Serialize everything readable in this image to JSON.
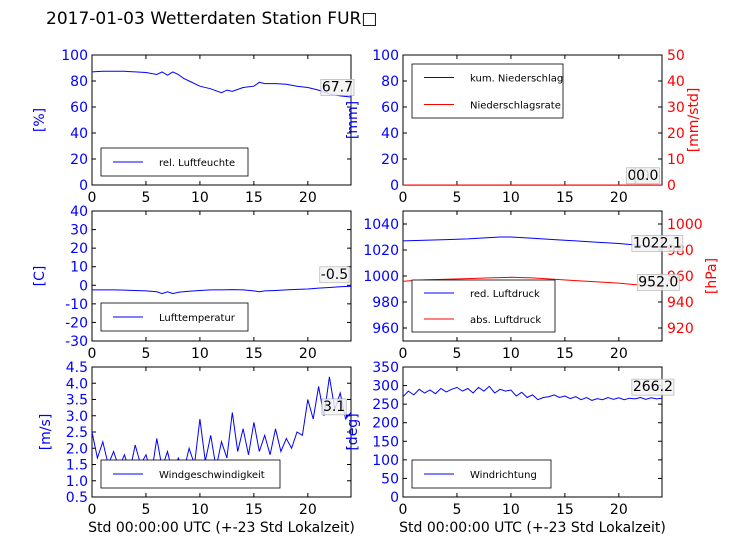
{
  "page": {
    "title": "2017-01-03 Wetterdaten Station FUR□"
  },
  "colors": {
    "blue": "#0000ff",
    "red": "#ff0000",
    "axis": "#000000"
  },
  "chart_data": [
    {
      "id": "humidity",
      "type": "line",
      "xlabel": "",
      "ylabel": "[%]",
      "ylabel_color": "#0000ff",
      "xlim": [
        0,
        24
      ],
      "ylim": [
        0,
        100
      ],
      "xticks": [
        0,
        5,
        10,
        15,
        20
      ],
      "yticks": [
        0,
        20,
        40,
        60,
        80,
        100
      ],
      "ytick_color": "#0000ff",
      "legend": {
        "position": "lower-left",
        "entries": [
          {
            "label": "rel. Luftfeuchte",
            "color": "#0000ff"
          }
        ]
      },
      "annotations": [
        {
          "text": "67.7",
          "x": 21.3,
          "y": 72
        }
      ],
      "series": [
        {
          "name": "rel. Luftfeuchte",
          "color": "#0000ff",
          "x": [
            0,
            1,
            2,
            3,
            4,
            5,
            6,
            6.5,
            7,
            7.5,
            8,
            8.5,
            9,
            10,
            11,
            12,
            12.5,
            13,
            14,
            15,
            15.5,
            16,
            17,
            18,
            19,
            20,
            21,
            22,
            23,
            24
          ],
          "y": [
            87,
            87.5,
            87.5,
            87.5,
            87,
            86.5,
            85,
            87,
            84.5,
            87,
            85,
            82,
            80,
            76,
            74,
            71,
            73,
            72,
            75,
            76,
            79,
            78,
            78,
            77.5,
            76,
            75,
            73,
            70,
            68.5,
            67.7
          ]
        }
      ]
    },
    {
      "id": "precipitation",
      "type": "line",
      "xlabel": "",
      "ylabel": "[mm]",
      "ylabel_color": "#0000ff",
      "y2label": "[mm/std]",
      "y2label_color": "#ff0000",
      "xlim": [
        0,
        24
      ],
      "ylim": [
        0,
        100
      ],
      "y2lim": [
        0,
        50
      ],
      "xticks": [
        0,
        5,
        10,
        15,
        20
      ],
      "yticks": [
        0,
        20,
        40,
        60,
        80,
        100
      ],
      "y2ticks": [
        0,
        10,
        20,
        30,
        40,
        50
      ],
      "ytick_color": "#0000ff",
      "y2tick_color": "#ff0000",
      "legend": {
        "position": "upper-left",
        "entries": [
          {
            "label": "kum. Niederschlag",
            "color": "#0000ff"
          },
          {
            "label": "Niederschlagsrate",
            "color": "#ff0000"
          }
        ]
      },
      "annotations": [
        {
          "text": "0.0",
          "x": 20.8,
          "y": 4
        },
        {
          "text": "0.0",
          "x": 21.6,
          "y": 4
        }
      ],
      "series": [
        {
          "name": "kum. Niederschlag",
          "color": "#0000ff",
          "axis": "y",
          "x": [
            0,
            24
          ],
          "y": [
            0,
            0
          ]
        },
        {
          "name": "Niederschlagsrate",
          "color": "#ff0000",
          "axis": "y2",
          "x": [
            0,
            24
          ],
          "y": [
            0,
            0
          ]
        }
      ]
    },
    {
      "id": "temperature",
      "type": "line",
      "xlabel": "",
      "ylabel": "[C]",
      "ylabel_color": "#0000ff",
      "xlim": [
        0,
        24
      ],
      "ylim": [
        -30,
        40
      ],
      "xticks": [
        0,
        5,
        10,
        15,
        20
      ],
      "yticks": [
        -30,
        -20,
        -10,
        0,
        10,
        20,
        30,
        40
      ],
      "ytick_color": "#0000ff",
      "legend": {
        "position": "lower-left",
        "entries": [
          {
            "label": "Lufttemperatur",
            "color": "#0000ff"
          }
        ]
      },
      "annotations": [
        {
          "text": "-0.5",
          "x": 21.2,
          "y": 3.5
        }
      ],
      "series": [
        {
          "name": "Lufttemperatur",
          "color": "#0000ff",
          "x": [
            0,
            1,
            2,
            3,
            4,
            5,
            6,
            6.5,
            7,
            7.5,
            8,
            9,
            10,
            11,
            12,
            13,
            14,
            15,
            15.5,
            16,
            17,
            18,
            19,
            20,
            21,
            22,
            23,
            24
          ],
          "y": [
            -2.5,
            -2.5,
            -2.5,
            -2.6,
            -2.8,
            -3,
            -3.5,
            -4.5,
            -3.5,
            -4.5,
            -3.8,
            -3.2,
            -2.8,
            -2.5,
            -2.5,
            -2.3,
            -2.5,
            -3,
            -3.5,
            -3,
            -2.8,
            -2.5,
            -2.2,
            -2,
            -1.5,
            -1.2,
            -0.8,
            -0.5
          ]
        }
      ]
    },
    {
      "id": "pressure",
      "type": "line",
      "xlabel": "",
      "ylabel": "",
      "y2label": "[hPa]",
      "y2label_color": "#ff0000",
      "xlim": [
        0,
        24
      ],
      "ylim": [
        950,
        1050
      ],
      "y2lim": [
        910,
        1010
      ],
      "xticks": [
        0,
        5,
        10,
        15,
        20
      ],
      "yticks": [
        960,
        980,
        1000,
        1020,
        1040
      ],
      "y2ticks": [
        920,
        940,
        960,
        980,
        1000
      ],
      "ytick_color": "#0000ff",
      "y2tick_color": "#ff0000",
      "legend": {
        "position": "lower-left",
        "entries": [
          {
            "label": "red. Luftdruck",
            "color": "#0000ff"
          },
          {
            "label": "abs. Luftdruck",
            "color": "#ff0000"
          }
        ]
      },
      "annotations": [
        {
          "text": "1022.1",
          "x": 21.3,
          "y": 1022
        },
        {
          "text": "952.0",
          "x": 21.8,
          "y": 992
        }
      ],
      "series": [
        {
          "name": "red. Luftdruck",
          "color": "#0000ff",
          "axis": "y",
          "x": [
            0,
            2,
            4,
            6,
            8,
            9,
            10,
            12,
            14,
            16,
            18,
            20,
            22,
            24
          ],
          "y": [
            1027,
            1027.5,
            1028,
            1028.5,
            1029.5,
            1030,
            1030,
            1029,
            1028,
            1027,
            1026,
            1025,
            1023.5,
            1022.1
          ]
        },
        {
          "name": "abs. Luftdruck",
          "color": "#ff0000",
          "axis": "y2",
          "x": [
            0,
            2,
            4,
            6,
            8,
            10,
            12,
            14,
            16,
            18,
            20,
            22,
            24
          ],
          "y": [
            956,
            957,
            957.5,
            958,
            958.5,
            959,
            958.5,
            957.5,
            956.5,
            955.5,
            954.5,
            953,
            952
          ]
        }
      ]
    },
    {
      "id": "wind-speed",
      "type": "line",
      "xlabel": "Std 00:00:00 UTC (+-23 Std Lokalzeit)",
      "ylabel": "[m/s]",
      "ylabel_color": "#0000ff",
      "xlim": [
        0,
        24
      ],
      "ylim": [
        0.5,
        4.5
      ],
      "xticks": [
        0,
        5,
        10,
        15,
        20
      ],
      "yticks": [
        0.5,
        1.0,
        1.5,
        2.0,
        2.5,
        3.0,
        3.5,
        4.0,
        4.5
      ],
      "ytick_labels": [
        "0.5",
        "1.0",
        "1.5",
        "2.0",
        "2.5",
        "3.0",
        "3.5",
        "4.0",
        "4.5"
      ],
      "ytick_color": "#0000ff",
      "legend": {
        "position": "lower-left",
        "entries": [
          {
            "label": "Windgeschwindigkeit",
            "color": "#0000ff"
          }
        ]
      },
      "annotations": [
        {
          "text": "3.1",
          "x": 21.4,
          "y": 3.15
        }
      ],
      "series": [
        {
          "name": "Windgeschwindigkeit",
          "color": "#0000ff",
          "x": [
            0,
            0.5,
            1,
            1.5,
            2,
            2.5,
            3,
            3.5,
            4,
            4.5,
            5,
            5.5,
            6,
            6.5,
            7,
            7.5,
            8,
            8.5,
            9,
            9.5,
            10,
            10.5,
            11,
            11.5,
            12,
            12.5,
            13,
            13.5,
            14,
            14.5,
            15,
            15.5,
            16,
            16.5,
            17,
            17.5,
            18,
            18.5,
            19,
            19.5,
            20,
            20.5,
            21,
            21.5,
            22,
            22.5,
            23,
            23.5,
            24
          ],
          "y": [
            2.5,
            1.7,
            2.2,
            1.5,
            1.9,
            1.4,
            1.8,
            1.3,
            2.1,
            1.5,
            1.8,
            1.2,
            2.3,
            1.4,
            1.9,
            1.2,
            1.7,
            1.3,
            2.0,
            1.5,
            2.9,
            1.6,
            2.4,
            1.4,
            2.2,
            1.7,
            3.1,
            1.9,
            2.6,
            1.8,
            2.8,
            1.9,
            2.4,
            1.8,
            2.6,
            1.9,
            2.3,
            2.0,
            2.5,
            2.4,
            3.5,
            2.9,
            3.9,
            3.0,
            4.2,
            3.2,
            3.7,
            2.9,
            3.1
          ]
        }
      ]
    },
    {
      "id": "wind-direction",
      "type": "line",
      "xlabel": "Std 00:00:00 UTC (+-23 Std Lokalzeit)",
      "ylabel": "[deg]",
      "ylabel_color": "#0000ff",
      "xlim": [
        0,
        24
      ],
      "ylim": [
        0,
        350
      ],
      "xticks": [
        0,
        5,
        10,
        15,
        20
      ],
      "yticks": [
        0,
        50,
        100,
        150,
        200,
        250,
        300,
        350
      ],
      "ytick_color": "#0000ff",
      "legend": {
        "position": "lower-left",
        "entries": [
          {
            "label": "Windrichtung",
            "color": "#0000ff"
          }
        ]
      },
      "annotations": [
        {
          "text": "266.2",
          "x": 21.3,
          "y": 285
        }
      ],
      "series": [
        {
          "name": "Windrichtung",
          "color": "#0000ff",
          "x": [
            0,
            0.5,
            1,
            1.5,
            2,
            2.5,
            3,
            3.5,
            4,
            4.5,
            5,
            5.5,
            6,
            6.5,
            7,
            7.5,
            8,
            8.5,
            9,
            9.5,
            10,
            10.5,
            11,
            11.5,
            12,
            12.5,
            13,
            13.5,
            14,
            14.5,
            15,
            15.5,
            16,
            16.5,
            17,
            17.5,
            18,
            18.5,
            19,
            19.5,
            20,
            20.5,
            21,
            21.5,
            22,
            22.5,
            23,
            23.5,
            24
          ],
          "y": [
            270,
            285,
            275,
            290,
            280,
            288,
            278,
            292,
            283,
            290,
            295,
            285,
            292,
            280,
            295,
            285,
            298,
            280,
            290,
            285,
            288,
            272,
            282,
            268,
            275,
            262,
            268,
            270,
            275,
            268,
            272,
            265,
            270,
            262,
            268,
            260,
            265,
            262,
            268,
            263,
            267,
            262,
            266,
            264,
            268,
            263,
            267,
            264,
            266
          ]
        }
      ]
    }
  ]
}
